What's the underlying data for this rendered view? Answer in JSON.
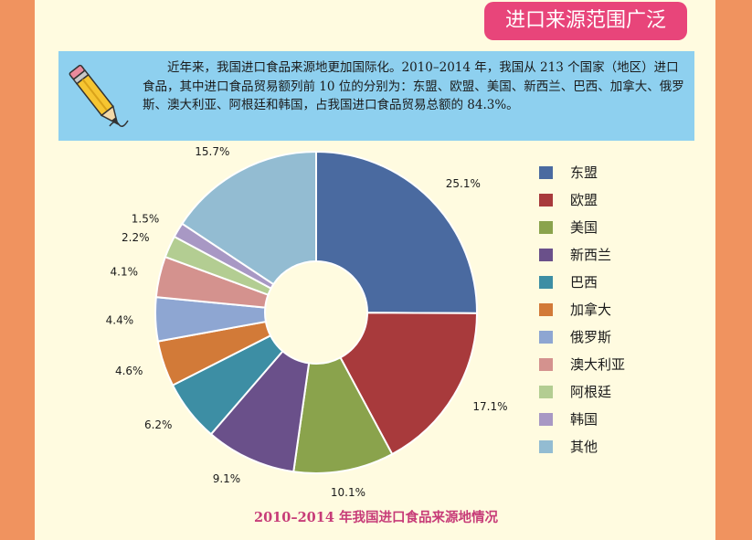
{
  "header": {
    "title": "进口来源范围广泛"
  },
  "intro": {
    "text": "近年来，我国进口食品来源地更加国际化。2010–2014 年，我国从 213 个国家（地区）进口食品，其中进口食品贸易额列前 10 位的分别为：东盟、欧盟、美国、新西兰、巴西、加拿大、俄罗斯、澳大利亚、阿根廷和韩国，占我国进口食品贸易总额的 84.3%。"
  },
  "caption": "2010–2014 年我国进口食品来源地情况",
  "icons": {
    "pencil": "pencil-icon"
  },
  "colors": {
    "background": "#f0935f",
    "panel": "#fffbe0",
    "badge": "#e8457a",
    "intro_bg": "#8ed0ef",
    "caption": "#c73c78"
  },
  "chart_data": {
    "type": "pie",
    "donut": true,
    "legend_position": "right",
    "categories": [
      "东盟",
      "欧盟",
      "美国",
      "新西兰",
      "巴西",
      "加拿大",
      "俄罗斯",
      "澳大利亚",
      "阿根廷",
      "韩国",
      "其他"
    ],
    "values": [
      25.1,
      17.1,
      10.1,
      9.1,
      6.2,
      4.6,
      4.4,
      4.1,
      2.2,
      1.5,
      15.7
    ],
    "labels": [
      "25.1%",
      "17.1%",
      "10.1%",
      "9.1%",
      "6.2%",
      "4.6%",
      "4.4%",
      "4.1%",
      "2.2%",
      "1.5%",
      "15.7%"
    ],
    "colors": [
      "#4a6aa0",
      "#a83a3c",
      "#8aa34c",
      "#6a508a",
      "#3d8ea4",
      "#d27a38",
      "#8ea6d2",
      "#d4928e",
      "#b3cd92",
      "#a898c4",
      "#93bcd2"
    ]
  }
}
